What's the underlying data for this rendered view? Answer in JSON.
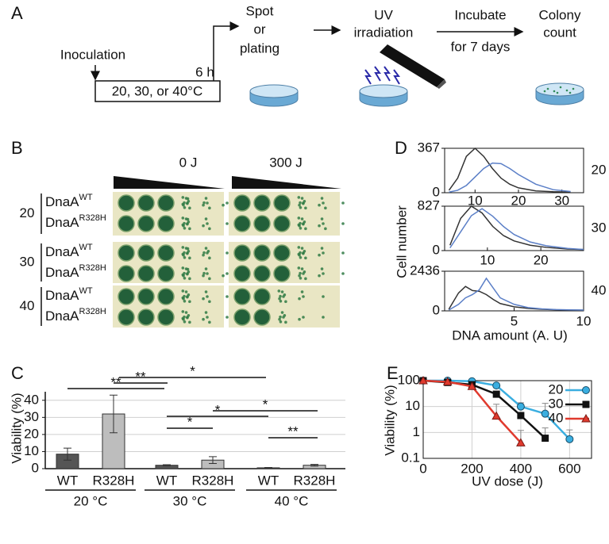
{
  "figure": {
    "panel_a": {
      "label": "A",
      "inoculation": "Inoculation",
      "condition": "20, 30, or 40°C",
      "time": "6 h",
      "steps": [
        [
          "Spot",
          "or",
          "plating"
        ],
        [
          "UV",
          "irradiation"
        ],
        [
          "Incubate",
          "for 7 days"
        ],
        [
          "Colony",
          "count"
        ]
      ]
    },
    "panel_b": {
      "label": "B",
      "doses": [
        "0 J",
        "300 J"
      ],
      "groups": [
        {
          "temp": "20",
          "strains": [
            {
              "name": "DnaA",
              "sup": "WT"
            },
            {
              "name": "DnaA",
              "sup": "R328H"
            }
          ]
        },
        {
          "temp": "30",
          "strains": [
            {
              "name": "DnaA",
              "sup": "WT"
            },
            {
              "name": "DnaA",
              "sup": "R328H"
            }
          ]
        },
        {
          "temp": "40",
          "strains": [
            {
              "name": "DnaA",
              "sup": "WT"
            },
            {
              "name": "DnaA",
              "sup": "R328H"
            }
          ]
        }
      ]
    },
    "panel_c": {
      "label": "C"
    },
    "panel_d": {
      "label": "D",
      "ylabel": "Cell number",
      "xlabel": "DNA amount (A. U)"
    },
    "panel_e": {
      "label": "E"
    }
  },
  "chart_data": [
    {
      "type": "bar",
      "ylabel": "Viability (%)",
      "categories": [
        "WT",
        "R328H",
        "WT",
        "R328H",
        "WT",
        "R328H"
      ],
      "groups": [
        "20 °C",
        "30 °C",
        "40 °C"
      ],
      "values": [
        8.5,
        32,
        2,
        5,
        0.5,
        2
      ],
      "errors": [
        3.5,
        11,
        0.3,
        2,
        0.2,
        0.5
      ],
      "colors": [
        "#555555",
        "#bdbdbd",
        "#555555",
        "#bdbdbd",
        "#555555",
        "#bdbdbd"
      ],
      "ylim": [
        0,
        45
      ],
      "yticks": [
        0,
        10,
        20,
        30,
        40
      ],
      "grid": true,
      "annotations": [
        "**",
        "**",
        "*",
        "*",
        "*",
        "*",
        "**"
      ]
    },
    {
      "type": "line",
      "side_label": "20",
      "x": [
        4,
        6,
        8,
        10,
        12,
        14,
        16,
        18,
        20,
        24,
        28,
        32
      ],
      "series": [
        {
          "color": "#333333",
          "values": [
            20,
            120,
            300,
            367,
            300,
            200,
            120,
            70,
            40,
            15,
            8,
            5
          ]
        },
        {
          "color": "#5b7fc7",
          "values": [
            5,
            20,
            60,
            130,
            200,
            245,
            240,
            200,
            150,
            70,
            25,
            10
          ]
        }
      ],
      "xlim": [
        3,
        35
      ],
      "xticks": [
        10,
        20,
        30
      ],
      "ylim": [
        0,
        367
      ],
      "yticks": [
        0,
        367
      ]
    },
    {
      "type": "line",
      "side_label": "30",
      "x": [
        3,
        5,
        7,
        9,
        11,
        13,
        15,
        18,
        21,
        25,
        28
      ],
      "series": [
        {
          "color": "#333333",
          "values": [
            100,
            600,
            827,
            700,
            450,
            280,
            180,
            100,
            60,
            30,
            20
          ]
        },
        {
          "color": "#5b7fc7",
          "values": [
            50,
            350,
            650,
            780,
            640,
            450,
            300,
            160,
            90,
            40,
            20
          ]
        }
      ],
      "xlim": [
        2,
        28
      ],
      "xticks": [
        10,
        20
      ],
      "ylim": [
        0,
        827
      ],
      "yticks": [
        0,
        827
      ]
    },
    {
      "type": "line",
      "side_label": "40",
      "x": [
        0.3,
        1,
        1.5,
        2,
        2.5,
        3,
        3.5,
        4,
        5,
        6,
        7,
        8,
        9,
        10
      ],
      "series": [
        {
          "color": "#333333",
          "values": [
            100,
            1100,
            1500,
            1250,
            1200,
            1000,
            700,
            450,
            250,
            150,
            100,
            70,
            50,
            40
          ]
        },
        {
          "color": "#5b7fc7",
          "values": [
            50,
            400,
            800,
            1000,
            1300,
            2000,
            1400,
            800,
            400,
            200,
            120,
            80,
            60,
            50
          ]
        }
      ],
      "xlim": [
        0,
        10
      ],
      "xticks": [
        5,
        10
      ],
      "ylim": [
        0,
        2436
      ],
      "yticks": [
        0,
        2436
      ]
    },
    {
      "type": "logline",
      "xlabel": "UV dose (J)",
      "ylabel": "Viability (%)",
      "log_y": true,
      "grid": true,
      "legend": "top-right",
      "x": [
        0,
        100,
        200,
        300,
        400,
        500,
        600
      ],
      "series": [
        {
          "name": "20",
          "color": "#3aaee0",
          "marker": "circle",
          "values": [
            100,
            100,
            95,
            65,
            10,
            5.3,
            0.55
          ],
          "errors": [
            null,
            null,
            null,
            15,
            4,
            8,
            0.7
          ]
        },
        {
          "name": "30",
          "color": "#111111",
          "marker": "square",
          "values": [
            100,
            85,
            70,
            30,
            4.5,
            0.6,
            null
          ],
          "errors": [
            null,
            null,
            null,
            null,
            null,
            0.9,
            null
          ]
        },
        {
          "name": "40",
          "color": "#e03a2e",
          "marker": "triangle",
          "values": [
            100,
            90,
            60,
            4.3,
            0.4,
            null,
            null
          ],
          "errors": [
            null,
            null,
            null,
            8,
            0.8,
            null,
            null
          ]
        }
      ],
      "xlim": [
        0,
        690
      ],
      "xticks": [
        0,
        200,
        400,
        600
      ],
      "ylim": [
        0.1,
        100
      ],
      "yticks": [
        0.1,
        1,
        10,
        100
      ]
    }
  ]
}
